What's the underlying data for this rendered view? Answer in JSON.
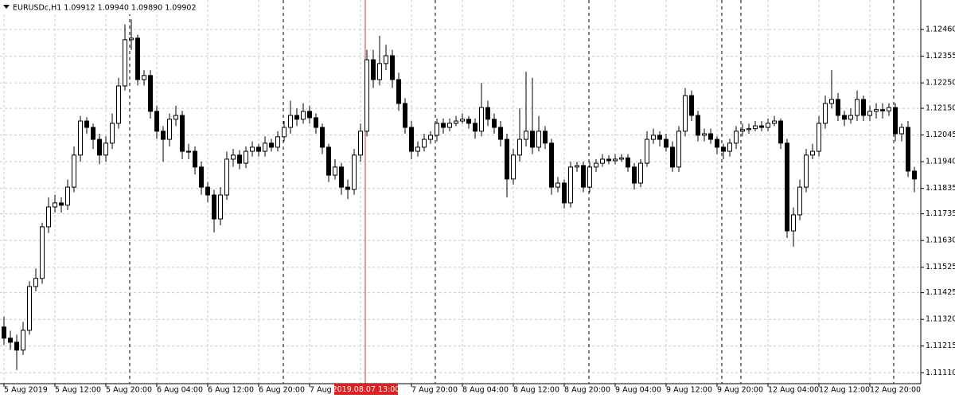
{
  "chart_data": {
    "type": "candlestick",
    "title": "EURUSDc,H1  1.09912 1.09940 1.09890 1.09902",
    "highlight_label": "2019.08.07 13:00",
    "xtick_labels": [
      "5 Aug 2019",
      "5 Aug 12:00",
      "5 Aug 20:00",
      "6 Aug 04:00",
      "6 Aug 12:00",
      "6 Aug 20:00",
      "7 Aug 04:00",
      null,
      "7 Aug 20:00",
      "8 Aug 04:00",
      "8 Aug 12:00",
      "8 Aug 20:00",
      "9 Aug 04:00",
      "9 Aug 12:00",
      "9 Aug 20:00",
      "12 Aug 04:00",
      "12 Aug 12:00",
      "12 Aug 20:00"
    ],
    "open": [
      1.1129,
      1.11246,
      1.1123,
      1.11199,
      1.11277,
      1.11449,
      1.11481,
      1.11684,
      1.11762,
      1.11778,
      1.11769,
      1.1184,
      1.11966,
      1.121,
      1.12075,
      1.12028,
      1.11966,
      1.12013,
      1.12091,
      1.12238,
      1.1242,
      1.12426,
      1.12263,
      1.12279,
      1.12138,
      1.1206,
      1.12028,
      1.12107,
      1.12122,
      1.11981,
      1.11981,
      1.11919,
      1.1184,
      1.11809,
      1.11715,
      1.11809,
      1.1195,
      1.11966,
      1.11934,
      1.11981,
      1.11997,
      1.11981,
      1.12013,
      1.11997,
      1.12038,
      1.12075,
      1.12122,
      1.12107,
      1.12138,
      1.12113,
      1.12075,
      1.11997,
      1.11887,
      1.11919,
      1.1184,
      1.11831,
      1.11966,
      1.1206,
      1.12341,
      1.12263,
      1.12326,
      1.12357,
      1.12263,
      1.12169,
      1.12075,
      1.11981,
      1.11997,
      1.12028,
      1.12044,
      1.12091,
      1.12075,
      1.12091,
      1.121,
      1.12107,
      1.12091,
      1.1206,
      1.12153,
      1.12107,
      1.12075,
      1.12028,
      1.11872,
      1.11966,
      1.12028,
      1.1206,
      1.11997,
      1.1206,
      1.12013,
      1.1184,
      1.11856,
      1.11778,
      1.11919,
      1.11925,
      1.1184,
      1.11919,
      1.11934,
      1.1195,
      1.11944,
      1.1195,
      1.11955,
      1.11919,
      1.11856,
      1.11934,
      1.12028,
      1.12044,
      1.12028,
      1.11997,
      1.11919,
      1.1206,
      1.122,
      1.12122,
      1.12044,
      1.1205,
      1.12028,
      1.11997,
      1.11981,
      1.12013,
      1.1206,
      1.12066,
      1.1207,
      1.12081,
      1.12075,
      1.12091,
      1.121,
      1.12013,
      1.11668,
      1.11731,
      1.1184,
      1.11966,
      1.11981,
      1.12091,
      1.12169,
      1.12185,
      1.12122,
      1.12107,
      1.12122,
      1.12185,
      1.12122,
      1.12138,
      1.12145,
      1.1214,
      1.12153,
      1.1205,
      1.12075,
      1.11903
    ],
    "high": [
      1.1133,
      1.11275,
      1.1126,
      1.1131,
      1.1147,
      1.1152,
      1.117,
      1.118,
      1.1181,
      1.118,
      1.1187,
      1.12,
      1.1212,
      1.12115,
      1.1209,
      1.1205,
      1.1204,
      1.1213,
      1.1227,
      1.1248,
      1.125,
      1.1244,
      1.123,
      1.123,
      1.1216,
      1.1208,
      1.1213,
      1.1216,
      1.1214,
      1.1201,
      1.12,
      1.1194,
      1.1186,
      1.1183,
      1.1184,
      1.1198,
      1.1199,
      1.11985,
      1.12,
      1.1202,
      1.1201,
      1.1204,
      1.1203,
      1.1206,
      1.121,
      1.1218,
      1.1215,
      1.1217,
      1.1216,
      1.1213,
      1.1209,
      1.1201,
      1.1195,
      1.11935,
      1.1187,
      1.1199,
      1.1209,
      1.1238,
      1.1238,
      1.12435,
      1.124,
      1.1238,
      1.1229,
      1.1219,
      1.121,
      1.1202,
      1.1205,
      1.1206,
      1.1211,
      1.1211,
      1.1211,
      1.1212,
      1.1213,
      1.1212,
      1.1211,
      1.1225,
      1.1218,
      1.1213,
      1.121,
      1.1205,
      1.1199,
      1.1215,
      1.12294,
      1.1227,
      1.1212,
      1.1208,
      1.1203,
      1.1188,
      1.1187,
      1.1194,
      1.1194,
      1.1194,
      1.1194,
      1.1195,
      1.1197,
      1.11965,
      1.1197,
      1.1197,
      1.1197,
      1.11935,
      1.1195,
      1.1206,
      1.1207,
      1.1206,
      1.1205,
      1.1202,
      1.1208,
      1.1223,
      1.1222,
      1.1214,
      1.1207,
      1.1207,
      1.1204,
      1.1201,
      1.1203,
      1.1208,
      1.1209,
      1.1209,
      1.121,
      1.121,
      1.1211,
      1.1212,
      1.1211,
      1.1203,
      1.1176,
      1.1187,
      1.1199,
      1.1201,
      1.1212,
      1.122,
      1.123,
      1.1221,
      1.1214,
      1.1215,
      1.1222,
      1.122,
      1.1216,
      1.1217,
      1.1217,
      1.1217,
      1.1217,
      1.1209,
      1.121,
      1.1192
    ],
    "low": [
      1.1122,
      1.112,
      1.11121,
      1.1118,
      1.1126,
      1.1143,
      1.1146,
      1.1166,
      1.1174,
      1.1174,
      1.1175,
      1.1182,
      1.1194,
      1.1205,
      1.1199,
      1.1193,
      1.1194,
      1.1199,
      1.1207,
      1.1222,
      1.1238,
      1.1224,
      1.1224,
      1.1211,
      1.1203,
      1.1194,
      1.12,
      1.1208,
      1.1195,
      1.1195,
      1.1189,
      1.1181,
      1.1178,
      1.11662,
      1.1169,
      1.1179,
      1.1192,
      1.1191,
      1.11915,
      1.1196,
      1.1196,
      1.1196,
      1.1198,
      1.1198,
      1.1202,
      1.1205,
      1.1208,
      1.1209,
      1.1209,
      1.1205,
      1.1197,
      1.1186,
      1.1187,
      1.1181,
      1.11793,
      1.1181,
      1.1194,
      1.1204,
      1.1223,
      1.1224,
      1.123,
      1.1223,
      1.1214,
      1.1205,
      1.1195,
      1.1196,
      1.1198,
      1.1201,
      1.1202,
      1.1205,
      1.1206,
      1.1208,
      1.1209,
      1.1207,
      1.1203,
      1.1204,
      1.1208,
      1.1205,
      1.12,
      1.118,
      1.1185,
      1.1194,
      1.12,
      1.1197,
      1.1198,
      1.1199,
      1.1181,
      1.1182,
      1.11756,
      1.1176,
      1.119,
      1.1182,
      1.1182,
      1.119,
      1.1192,
      1.1193,
      1.1193,
      1.1194,
      1.119,
      1.1183,
      1.1184,
      1.1192,
      1.1201,
      1.12,
      1.1198,
      1.119,
      1.119,
      1.1204,
      1.121,
      1.1202,
      1.1202,
      1.1201,
      1.1197,
      1.1195,
      1.1196,
      1.1199,
      1.1204,
      1.1205,
      1.1206,
      1.1206,
      1.1206,
      1.1208,
      1.1199,
      1.1164,
      1.11606,
      1.1171,
      1.1182,
      1.1195,
      1.1196,
      1.1207,
      1.1215,
      1.121,
      1.1208,
      1.1209,
      1.121,
      1.121,
      1.121,
      1.1211,
      1.1211,
      1.1212,
      1.1202,
      1.1202,
      1.1188,
      1.1182
    ],
    "close": [
      1.11246,
      1.1123,
      1.11199,
      1.11277,
      1.11449,
      1.11481,
      1.11684,
      1.11762,
      1.11778,
      1.11769,
      1.1184,
      1.11966,
      1.121,
      1.12075,
      1.12028,
      1.11966,
      1.12013,
      1.12091,
      1.12238,
      1.1242,
      1.12426,
      1.12263,
      1.12279,
      1.12138,
      1.1206,
      1.12028,
      1.12107,
      1.12122,
      1.11981,
      1.11981,
      1.11919,
      1.1184,
      1.11809,
      1.11715,
      1.11809,
      1.1195,
      1.11966,
      1.11934,
      1.11981,
      1.11997,
      1.11981,
      1.12013,
      1.11997,
      1.12038,
      1.12075,
      1.12122,
      1.12107,
      1.12138,
      1.12113,
      1.12075,
      1.11997,
      1.11887,
      1.11919,
      1.1184,
      1.11831,
      1.11966,
      1.1206,
      1.12341,
      1.12263,
      1.12326,
      1.12357,
      1.12263,
      1.12169,
      1.12075,
      1.11981,
      1.11997,
      1.12028,
      1.12044,
      1.12091,
      1.12075,
      1.12091,
      1.121,
      1.12107,
      1.12091,
      1.1206,
      1.12153,
      1.12107,
      1.12075,
      1.12028,
      1.11872,
      1.11966,
      1.12028,
      1.1206,
      1.11997,
      1.1206,
      1.12013,
      1.1184,
      1.11856,
      1.11778,
      1.11919,
      1.11925,
      1.1184,
      1.11919,
      1.11934,
      1.1195,
      1.11944,
      1.1195,
      1.11955,
      1.11919,
      1.11856,
      1.11934,
      1.12028,
      1.12044,
      1.12028,
      1.11997,
      1.11919,
      1.1206,
      1.122,
      1.12122,
      1.12044,
      1.1205,
      1.12028,
      1.11997,
      1.11981,
      1.12013,
      1.1206,
      1.12066,
      1.1207,
      1.12081,
      1.12075,
      1.12091,
      1.121,
      1.12013,
      1.11668,
      1.11731,
      1.1184,
      1.11966,
      1.11981,
      1.12091,
      1.12169,
      1.12185,
      1.12122,
      1.12107,
      1.12122,
      1.12185,
      1.12122,
      1.12138,
      1.12145,
      1.1214,
      1.12153,
      1.1205,
      1.12075,
      1.11903,
      1.11872
    ],
    "ylim": [
      1.11067,
      1.12576
    ],
    "yticks": [
      {
        "value": 1.1246,
        "label": "1.12460"
      },
      {
        "value": 1.12355,
        "label": "1.12355"
      },
      {
        "value": 1.1225,
        "label": "1.12250"
      },
      {
        "value": 1.1215,
        "label": "1.12150"
      },
      {
        "value": 1.12045,
        "label": "1.12045"
      },
      {
        "value": 1.1194,
        "label": "1.11940"
      },
      {
        "value": 1.11835,
        "label": "1.11835"
      },
      {
        "value": 1.11735,
        "label": "1.11735"
      },
      {
        "value": 1.1163,
        "label": "1.11630"
      },
      {
        "value": 1.11525,
        "label": "1.11525"
      },
      {
        "value": 1.11425,
        "label": "1.11425"
      },
      {
        "value": 1.1132,
        "label": "1.11320"
      },
      {
        "value": 1.11215,
        "label": "1.11215"
      },
      {
        "value": 1.1111,
        "label": "1.11110"
      }
    ],
    "grid": true,
    "up_color": "#ffffff",
    "down_color": "#000000"
  }
}
